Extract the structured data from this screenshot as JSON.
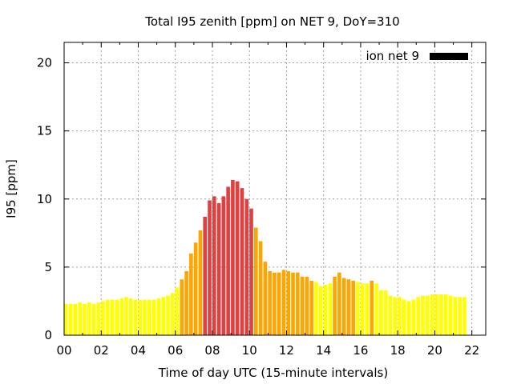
{
  "chart_data": {
    "type": "bar",
    "title": "Total I95 zenith [ppm] on NET 9, DoY=310",
    "xlabel": "Time of day UTC (15-minute intervals)",
    "ylabel": "I95 [ppm]",
    "legend": {
      "label": "ion net 9",
      "color": "#000000",
      "placement": "top-right"
    },
    "xlim": [
      0,
      22.75
    ],
    "ylim": [
      0,
      21.5
    ],
    "x_ticks": [
      "00",
      "02",
      "04",
      "06",
      "08",
      "10",
      "12",
      "14",
      "16",
      "18",
      "20",
      "22"
    ],
    "x_tick_values": [
      0,
      2,
      4,
      6,
      8,
      10,
      12,
      14,
      16,
      18,
      20,
      22
    ],
    "y_ticks": [
      "0",
      "5",
      "10",
      "15",
      "20"
    ],
    "y_tick_values": [
      0,
      5,
      10,
      15,
      20
    ],
    "grid": true,
    "bar_interval_hours": 0.25,
    "color_thresholds": [
      {
        "min": 0,
        "max": 4,
        "color": "#ffff00"
      },
      {
        "min": 4,
        "max": 8,
        "color": "#ffa500"
      },
      {
        "min": 8,
        "max": 100,
        "color": "#e04040"
      }
    ],
    "values": [
      2.3,
      2.3,
      2.3,
      2.4,
      2.3,
      2.4,
      2.3,
      2.4,
      2.5,
      2.6,
      2.6,
      2.6,
      2.7,
      2.8,
      2.7,
      2.6,
      2.6,
      2.6,
      2.6,
      2.6,
      2.7,
      2.8,
      2.9,
      3.1,
      3.5,
      4.1,
      4.7,
      6.0,
      6.8,
      7.7,
      8.7,
      9.9,
      10.2,
      9.7,
      10.2,
      10.9,
      11.4,
      11.3,
      10.8,
      10.0,
      9.3,
      7.9,
      6.9,
      5.4,
      4.7,
      4.6,
      4.6,
      4.8,
      4.7,
      4.6,
      4.6,
      4.3,
      4.3,
      4.0,
      3.9,
      3.6,
      3.7,
      3.8,
      4.3,
      4.6,
      4.2,
      4.1,
      4.0,
      3.9,
      3.8,
      3.8,
      4.0,
      3.8,
      3.3,
      3.3,
      2.9,
      2.8,
      2.8,
      2.6,
      2.5,
      2.6,
      2.8,
      2.9,
      2.9,
      3.0,
      3.0,
      3.0,
      3.0,
      2.9,
      2.8,
      2.8,
      2.8
    ]
  }
}
